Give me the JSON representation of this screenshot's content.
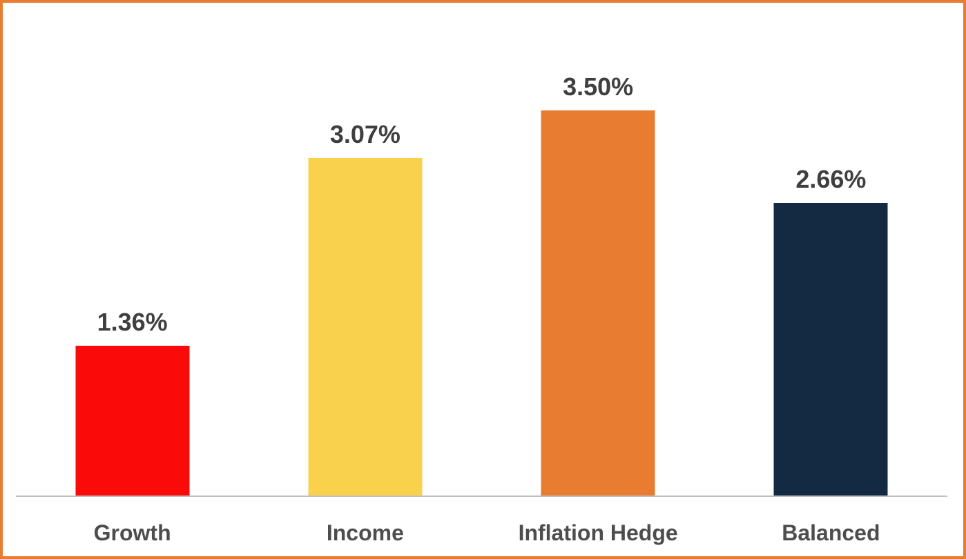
{
  "chart_data": {
    "type": "bar",
    "title": "",
    "xlabel": "",
    "ylabel": "",
    "categories": [
      "Growth",
      "Income",
      "Inflation Hedge",
      "Balanced"
    ],
    "values": [
      1.36,
      3.07,
      3.5,
      2.66
    ],
    "data_labels": [
      "1.36%",
      "3.07%",
      "3.50%",
      "2.66%"
    ],
    "bar_colors": [
      "#FB0A0A",
      "#FAD14D",
      "#E87D31",
      "#132A42"
    ],
    "legend_position": "none",
    "grid": false,
    "y_axis_visible": false,
    "baseline_color": "#BFBFBF",
    "data_label_color": "#3F3F3F",
    "category_label_color": "#4D4D4D",
    "frame_border_color": "#E87D31",
    "background_color": "#FFFFFF"
  }
}
